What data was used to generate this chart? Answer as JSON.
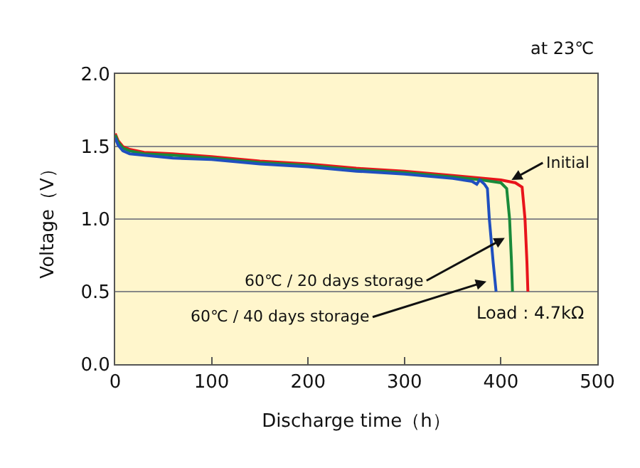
{
  "chart_data": {
    "type": "line",
    "xlabel": "Discharge time（h）",
    "ylabel": "Voltage（V）",
    "xlim": [
      0,
      500
    ],
    "xticks": [
      0,
      100,
      200,
      300,
      400,
      500
    ],
    "ylim": [
      0,
      2.0
    ],
    "yticks": [
      {
        "value": 0,
        "label": "0.0"
      },
      {
        "value": 0.5,
        "label": "0.5"
      },
      {
        "value": 1.0,
        "label": "1.0"
      },
      {
        "value": 1.5,
        "label": "1.5"
      },
      {
        "value": 2.0,
        "label": "2.0"
      }
    ],
    "grid": "y",
    "marker": "none",
    "line_style": "solid",
    "series": [
      {
        "color": "#e8141b",
        "x": [
          0,
          3,
          8,
          15,
          30,
          60,
          100,
          150,
          200,
          250,
          300,
          350,
          400,
          415,
          422,
          425,
          427,
          428
        ],
        "values": [
          1.59,
          1.54,
          1.5,
          1.48,
          1.46,
          1.45,
          1.43,
          1.4,
          1.38,
          1.35,
          1.33,
          1.3,
          1.27,
          1.25,
          1.22,
          1.0,
          0.7,
          0.5
        ]
      },
      {
        "color": "#1a8a3a",
        "x": [
          0,
          3,
          8,
          15,
          30,
          60,
          100,
          150,
          200,
          250,
          300,
          350,
          380,
          400,
          406,
          409,
          411,
          412
        ],
        "values": [
          1.58,
          1.53,
          1.49,
          1.47,
          1.45,
          1.44,
          1.42,
          1.39,
          1.37,
          1.34,
          1.32,
          1.29,
          1.27,
          1.25,
          1.21,
          1.0,
          0.7,
          0.5
        ]
      },
      {
        "color": "#1f4fbf",
        "x": [
          0,
          3,
          8,
          15,
          30,
          60,
          100,
          150,
          200,
          250,
          300,
          350,
          370,
          375,
          378,
          383,
          386,
          388,
          392,
          395
        ],
        "values": [
          1.56,
          1.51,
          1.47,
          1.45,
          1.44,
          1.42,
          1.41,
          1.38,
          1.36,
          1.33,
          1.31,
          1.28,
          1.26,
          1.24,
          1.27,
          1.24,
          1.21,
          1.0,
          0.7,
          0.5
        ]
      }
    ],
    "annotations": [
      "at 23℃",
      {
        "text": "Initial",
        "x": 411,
        "y": 1.27
      },
      {
        "text": "60℃ / 20 days storage",
        "x": 404,
        "y": 0.87
      },
      {
        "text": "60℃ / 40 days storage",
        "x": 385,
        "y": 0.57
      },
      "Load : 4.7kΩ"
    ]
  }
}
